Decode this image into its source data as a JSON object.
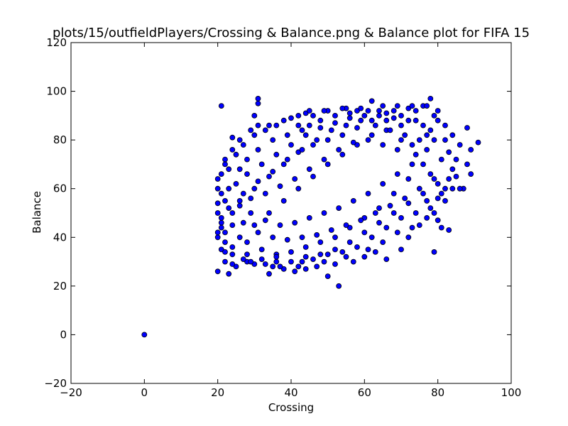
{
  "chart_data": {
    "type": "scatter",
    "title": "plots/15/outfieldPlayers/Crossing & Balance.png & Balance plot for FIFA 15",
    "xlabel": "Crossing",
    "ylabel": "Balance",
    "xlim": [
      -20,
      100
    ],
    "ylim": [
      -20,
      120
    ],
    "xticks": [
      -20,
      0,
      20,
      40,
      60,
      80,
      100
    ],
    "yticks": [
      -20,
      0,
      20,
      40,
      60,
      80,
      100,
      120
    ],
    "grid": false,
    "marker_color": "#0000ff",
    "marker_edge_color": "#000000",
    "points": [
      [
        0,
        0
      ],
      [
        21,
        94
      ],
      [
        31,
        97
      ],
      [
        31,
        95
      ],
      [
        53,
        20
      ],
      [
        50,
        24
      ],
      [
        20,
        26
      ],
      [
        23,
        25
      ],
      [
        34,
        25
      ],
      [
        79,
        34
      ],
      [
        91,
        79
      ],
      [
        89,
        76
      ],
      [
        89,
        66
      ],
      [
        88,
        85
      ],
      [
        88,
        70
      ],
      [
        87,
        60
      ],
      [
        86,
        60
      ],
      [
        85,
        65
      ],
      [
        83,
        43
      ],
      [
        81,
        44
      ],
      [
        80,
        47
      ],
      [
        78,
        97
      ],
      [
        62,
        96
      ],
      [
        55,
        93
      ],
      [
        44,
        91
      ],
      [
        40,
        89
      ],
      [
        30,
        90
      ],
      [
        24,
        81
      ],
      [
        22,
        70
      ],
      [
        20,
        64
      ],
      [
        20,
        50
      ],
      [
        20,
        40
      ],
      [
        21,
        35
      ],
      [
        22,
        30
      ],
      [
        25,
        28
      ],
      [
        28,
        30
      ],
      [
        35,
        28
      ],
      [
        38,
        27
      ],
      [
        41,
        26
      ],
      [
        44,
        27
      ],
      [
        47,
        28
      ],
      [
        52,
        29
      ],
      [
        57,
        30
      ],
      [
        60,
        32
      ],
      [
        63,
        34
      ],
      [
        66,
        31
      ],
      [
        70,
        35
      ],
      [
        72,
        40
      ],
      [
        75,
        45
      ],
      [
        78,
        52
      ],
      [
        80,
        56
      ],
      [
        82,
        60
      ],
      [
        84,
        68
      ],
      [
        83,
        75
      ],
      [
        82,
        80
      ],
      [
        80,
        88
      ],
      [
        76,
        94
      ],
      [
        72,
        93
      ],
      [
        68,
        92
      ],
      [
        65,
        94
      ],
      [
        58,
        92
      ],
      [
        50,
        92
      ],
      [
        46,
        90
      ],
      [
        42,
        86
      ],
      [
        36,
        86
      ],
      [
        33,
        84
      ],
      [
        30,
        82
      ],
      [
        27,
        78
      ],
      [
        25,
        74
      ],
      [
        23,
        68
      ],
      [
        21,
        58
      ],
      [
        21,
        46
      ],
      [
        26,
        40
      ],
      [
        30,
        45
      ],
      [
        34,
        50
      ],
      [
        38,
        55
      ],
      [
        42,
        60
      ],
      [
        46,
        65
      ],
      [
        50,
        70
      ],
      [
        54,
        74
      ],
      [
        58,
        78
      ],
      [
        62,
        82
      ],
      [
        66,
        84
      ],
      [
        70,
        86
      ],
      [
        74,
        88
      ],
      [
        78,
        84
      ],
      [
        76,
        70
      ],
      [
        72,
        64
      ],
      [
        68,
        58
      ],
      [
        64,
        52
      ],
      [
        60,
        48
      ],
      [
        56,
        44
      ],
      [
        52,
        40
      ],
      [
        48,
        38
      ],
      [
        44,
        36
      ],
      [
        40,
        34
      ],
      [
        36,
        33
      ],
      [
        32,
        35
      ],
      [
        28,
        38
      ],
      [
        24,
        45
      ],
      [
        26,
        55
      ],
      [
        30,
        60
      ],
      [
        34,
        65
      ],
      [
        38,
        70
      ],
      [
        42,
        75
      ],
      [
        46,
        78
      ],
      [
        50,
        80
      ],
      [
        54,
        82
      ],
      [
        58,
        85
      ],
      [
        62,
        88
      ],
      [
        66,
        88
      ],
      [
        70,
        80
      ],
      [
        74,
        74
      ],
      [
        78,
        66
      ],
      [
        80,
        62
      ],
      [
        76,
        58
      ],
      [
        72,
        54
      ],
      [
        68,
        50
      ],
      [
        64,
        46
      ],
      [
        60,
        42
      ],
      [
        56,
        38
      ],
      [
        52,
        35
      ],
      [
        48,
        33
      ],
      [
        44,
        32
      ],
      [
        40,
        30
      ],
      [
        36,
        30
      ],
      [
        32,
        31
      ],
      [
        28,
        33
      ],
      [
        24,
        36
      ],
      [
        22,
        42
      ],
      [
        23,
        52
      ],
      [
        25,
        62
      ],
      [
        28,
        66
      ],
      [
        32,
        70
      ],
      [
        36,
        74
      ],
      [
        40,
        78
      ],
      [
        44,
        82
      ],
      [
        48,
        85
      ],
      [
        52,
        87
      ],
      [
        56,
        89
      ],
      [
        60,
        90
      ],
      [
        64,
        90
      ],
      [
        68,
        89
      ],
      [
        72,
        88
      ],
      [
        76,
        86
      ],
      [
        79,
        80
      ],
      [
        81,
        72
      ],
      [
        79,
        64
      ],
      [
        75,
        60
      ],
      [
        71,
        56
      ],
      [
        67,
        53
      ],
      [
        63,
        50
      ],
      [
        59,
        47
      ],
      [
        55,
        45
      ],
      [
        51,
        43
      ],
      [
        47,
        41
      ],
      [
        43,
        40
      ],
      [
        39,
        39
      ],
      [
        35,
        40
      ],
      [
        31,
        42
      ],
      [
        27,
        46
      ],
      [
        24,
        50
      ],
      [
        27,
        58
      ],
      [
        31,
        63
      ],
      [
        35,
        67
      ],
      [
        39,
        72
      ],
      [
        43,
        76
      ],
      [
        47,
        80
      ],
      [
        51,
        84
      ],
      [
        55,
        86
      ],
      [
        59,
        88
      ],
      [
        63,
        86
      ],
      [
        67,
        84
      ],
      [
        71,
        82
      ],
      [
        75,
        80
      ],
      [
        77,
        76
      ],
      [
        73,
        70
      ],
      [
        69,
        66
      ],
      [
        65,
        62
      ],
      [
        61,
        58
      ],
      [
        57,
        55
      ],
      [
        53,
        52
      ],
      [
        49,
        50
      ],
      [
        45,
        48
      ],
      [
        41,
        46
      ],
      [
        37,
        45
      ],
      [
        33,
        47
      ],
      [
        29,
        50
      ],
      [
        26,
        53
      ],
      [
        29,
        56
      ],
      [
        33,
        58
      ],
      [
        37,
        61
      ],
      [
        41,
        64
      ],
      [
        45,
        68
      ],
      [
        49,
        72
      ],
      [
        53,
        76
      ],
      [
        57,
        79
      ],
      [
        61,
        80
      ],
      [
        65,
        78
      ],
      [
        69,
        76
      ],
      [
        73,
        78
      ],
      [
        77,
        82
      ],
      [
        79,
        90
      ],
      [
        74,
        92
      ],
      [
        70,
        90
      ],
      [
        66,
        91
      ],
      [
        61,
        92
      ],
      [
        56,
        91
      ],
      [
        52,
        90
      ],
      [
        48,
        88
      ],
      [
        45,
        86
      ],
      [
        43,
        84
      ],
      [
        39,
        82
      ],
      [
        35,
        80
      ],
      [
        31,
        76
      ],
      [
        28,
        72
      ],
      [
        26,
        68
      ],
      [
        23,
        60
      ],
      [
        22,
        55
      ],
      [
        21,
        48
      ],
      [
        20,
        42
      ],
      [
        22,
        38
      ],
      [
        24,
        33
      ],
      [
        27,
        31
      ],
      [
        30,
        29
      ],
      [
        33,
        29
      ],
      [
        37,
        28
      ],
      [
        42,
        28
      ],
      [
        46,
        31
      ],
      [
        50,
        33
      ],
      [
        54,
        34
      ],
      [
        58,
        36
      ],
      [
        62,
        40
      ],
      [
        66,
        44
      ],
      [
        70,
        48
      ],
      [
        74,
        50
      ],
      [
        77,
        55
      ],
      [
        81,
        58
      ],
      [
        83,
        64
      ],
      [
        85,
        72
      ],
      [
        86,
        78
      ],
      [
        84,
        82
      ],
      [
        82,
        86
      ],
      [
        80,
        92
      ],
      [
        77,
        94
      ],
      [
        73,
        94
      ],
      [
        69,
        94
      ],
      [
        64,
        92
      ],
      [
        59,
        93
      ],
      [
        54,
        93
      ],
      [
        49,
        92
      ],
      [
        45,
        92
      ],
      [
        42,
        90
      ],
      [
        38,
        88
      ],
      [
        34,
        86
      ],
      [
        31,
        86
      ],
      [
        29,
        84
      ],
      [
        26,
        80
      ],
      [
        24,
        76
      ],
      [
        22,
        72
      ],
      [
        21,
        66
      ],
      [
        20,
        60
      ],
      [
        20,
        54
      ],
      [
        21,
        44
      ],
      [
        22,
        34
      ],
      [
        24,
        29
      ],
      [
        29,
        30
      ],
      [
        36,
        32
      ],
      [
        43,
        30
      ],
      [
        49,
        30
      ],
      [
        55,
        32
      ],
      [
        61,
        35
      ],
      [
        65,
        38
      ],
      [
        69,
        42
      ],
      [
        73,
        44
      ],
      [
        77,
        48
      ],
      [
        79,
        50
      ],
      [
        82,
        55
      ],
      [
        84,
        60
      ]
    ]
  }
}
